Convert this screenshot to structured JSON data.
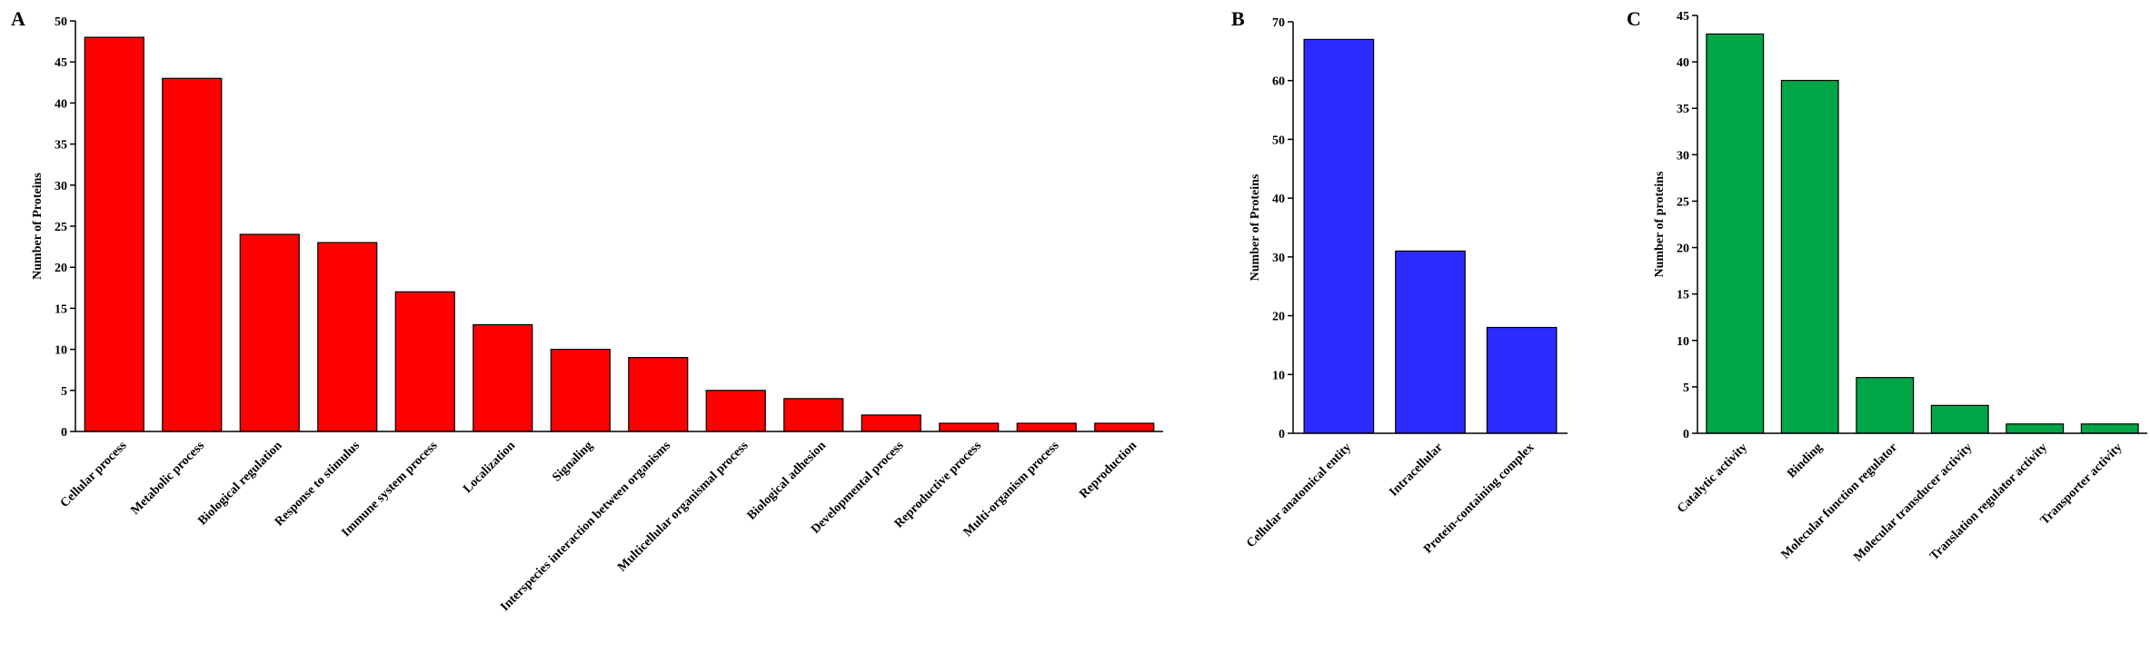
{
  "chart_data": [
    {
      "type": "bar",
      "label": "A",
      "ylabel": "Number of Proteins",
      "categories": [
        "Cellular process",
        "Metabolic process",
        "Biological regulation",
        "Response to stimulus",
        "Immune system process",
        "Localization",
        "Signaling",
        "Interspecies interaction between organisms",
        "Multicellular organismal process",
        "Biological adhesion",
        "Developmental process",
        "Reproductive process",
        "Multi-organism process",
        "Reproduction"
      ],
      "values": [
        48,
        43,
        24,
        23,
        17,
        13,
        10,
        9,
        5,
        4,
        2,
        1,
        1,
        1
      ],
      "color": "#ff0000",
      "ylim": [
        0,
        50
      ],
      "yticks": [
        0,
        5,
        10,
        15,
        20,
        25,
        30,
        35,
        40,
        45,
        50
      ]
    },
    {
      "type": "bar",
      "label": "B",
      "ylabel": "Number of Proteins",
      "categories": [
        "Cellular anatomical entity",
        "Intracellular",
        "Protein-containing complex"
      ],
      "values": [
        67,
        31,
        18
      ],
      "color": "#2b2bff",
      "ylim": [
        0,
        70
      ],
      "yticks": [
        0,
        10,
        20,
        30,
        40,
        50,
        60,
        70
      ]
    },
    {
      "type": "bar",
      "label": "C",
      "ylabel": "Number of proteins",
      "categories": [
        "Catalytic activity",
        "Binding",
        "Molecular function regulator",
        "Molecular transducer activity",
        "Translation regulator activity",
        "Transporter activity"
      ],
      "values": [
        43,
        38,
        6,
        3,
        1,
        1
      ],
      "color": "#00a545",
      "ylim": [
        0,
        45
      ],
      "yticks": [
        0,
        5,
        10,
        15,
        20,
        25,
        30,
        35,
        40,
        45
      ]
    }
  ]
}
